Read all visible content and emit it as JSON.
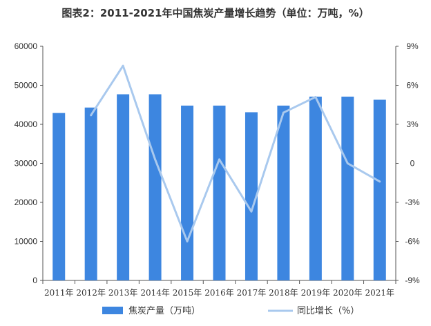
{
  "chart_data": {
    "type": "bar+line",
    "title": "图表2：2011-2021年中国焦炭产量增长趋势（单位：万吨，%）",
    "categories": [
      "2011年",
      "2012年",
      "2013年",
      "2014年",
      "2015年",
      "2016年",
      "2017年",
      "2018年",
      "2019年",
      "2020年",
      "2021年"
    ],
    "series": [
      {
        "name": "焦炭产量（万吨）",
        "type": "bar",
        "axis": "left",
        "color": "#3d86e0",
        "values": [
          42900,
          44300,
          47700,
          47700,
          44800,
          44800,
          43100,
          44800,
          47100,
          47100,
          46300
        ]
      },
      {
        "name": "同比增长（%）",
        "type": "line",
        "axis": "right",
        "color": "#a9c9ee",
        "values": [
          null,
          3.7,
          7.5,
          0.3,
          -6.0,
          0.3,
          -3.7,
          3.9,
          5.1,
          0.0,
          -1.4
        ]
      }
    ],
    "y_left": {
      "min": 0,
      "max": 60000,
      "ticks": [
        "0",
        "10000",
        "20000",
        "30000",
        "40000",
        "50000",
        "60000"
      ]
    },
    "y_right": {
      "min": -9,
      "max": 9,
      "ticks": [
        "-9%",
        "-6%",
        "-3%",
        "0",
        "3%",
        "6%",
        "9%"
      ]
    },
    "grid": false,
    "legend": "bottom"
  }
}
